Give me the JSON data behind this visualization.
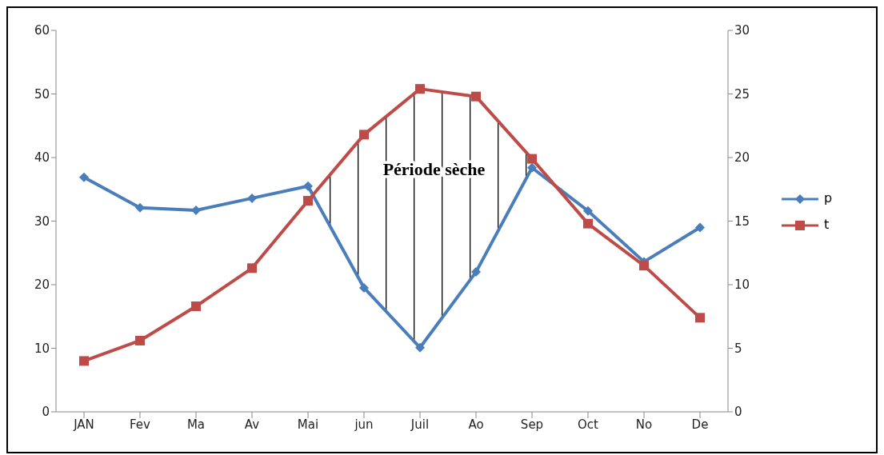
{
  "chart_data": {
    "type": "line",
    "categories": [
      "JAN",
      "Fev",
      "Ma",
      "Av",
      "Mai",
      "jun",
      "Juil",
      "Ao",
      "Sep",
      "Oct",
      "No",
      "De"
    ],
    "series": [
      {
        "name": "p",
        "color": "#4a7ebb",
        "marker": "diamond",
        "values": [
          36.9,
          32.1,
          31.7,
          33.6,
          35.5,
          19.5,
          10.1,
          22.0,
          38.4,
          31.6,
          23.6,
          29.0
        ]
      },
      {
        "name": "t",
        "color": "#be4b48",
        "marker": "square",
        "axis": "y2",
        "values": [
          4.0,
          5.6,
          8.3,
          11.3,
          16.6,
          21.8,
          25.4,
          24.8,
          19.9,
          14.8,
          11.5,
          7.4
        ]
      }
    ],
    "ylim": [
      0,
      60
    ],
    "yticks": [
      0,
      10,
      20,
      30,
      40,
      50,
      60
    ],
    "y2lim": [
      0,
      30
    ],
    "y2ticks": [
      0,
      5,
      10,
      15,
      20,
      25,
      30
    ],
    "legend": "right",
    "annotations": [
      "Période sèche"
    ]
  }
}
